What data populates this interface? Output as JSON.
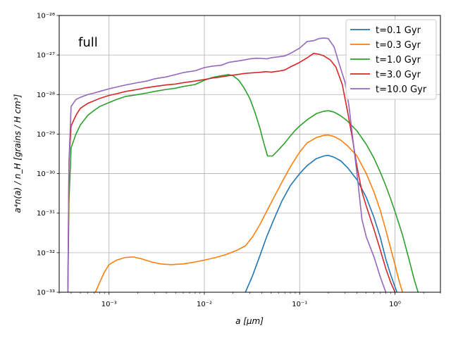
{
  "chart_data": {
    "type": "line",
    "annotation": "full",
    "xlabel": "a  [μm]",
    "ylabel": "a⁴n(a) / n_H  [grains / H cm³]",
    "xscale": "log",
    "yscale": "log",
    "xlim": [
      0.0003,
      3.0
    ],
    "ylim": [
      1e-33,
      1e-26
    ],
    "grid": true,
    "legend_position": "top-right",
    "x_ticks": [
      {
        "value": 0.001,
        "label": "10⁻³"
      },
      {
        "value": 0.01,
        "label": "10⁻²"
      },
      {
        "value": 0.1,
        "label": "10⁻¹"
      },
      {
        "value": 1,
        "label": "10⁰"
      }
    ],
    "y_ticks": [
      {
        "value": 1e-33,
        "label": "10⁻³³"
      },
      {
        "value": 1e-32,
        "label": "10⁻³²"
      },
      {
        "value": 1e-31,
        "label": "10⁻³¹"
      },
      {
        "value": 1e-30,
        "label": "10⁻³⁰"
      },
      {
        "value": 1e-29,
        "label": "10⁻²⁹"
      },
      {
        "value": 1e-28,
        "label": "10⁻²⁸"
      },
      {
        "value": 1e-27,
        "label": "10⁻²⁷"
      },
      {
        "value": 1e-26,
        "label": "10⁻²⁶"
      }
    ],
    "series": [
      {
        "name": "t=0.1 Gyr",
        "color": "#1f77b4",
        "points": [
          [
            0.027,
            1e-33
          ],
          [
            0.032,
            2.6e-33
          ],
          [
            0.038,
            8e-33
          ],
          [
            0.045,
            2.5e-32
          ],
          [
            0.055,
            8e-32
          ],
          [
            0.065,
            2e-31
          ],
          [
            0.08,
            5e-31
          ],
          [
            0.1,
            1e-30
          ],
          [
            0.12,
            1.6e-30
          ],
          [
            0.15,
            2.4e-30
          ],
          [
            0.18,
            2.8e-30
          ],
          [
            0.2,
            2.9e-30
          ],
          [
            0.23,
            2.6e-30
          ],
          [
            0.27,
            2.1e-30
          ],
          [
            0.32,
            1.4e-30
          ],
          [
            0.4,
            7e-31
          ],
          [
            0.5,
            2.5e-31
          ],
          [
            0.6,
            8e-32
          ],
          [
            0.7,
            2.5e-32
          ],
          [
            0.8,
            7e-33
          ],
          [
            0.9,
            2.8e-33
          ],
          [
            1.05,
            1e-33
          ]
        ]
      },
      {
        "name": "t=0.3 Gyr",
        "color": "#ff7f0e",
        "points": [
          [
            0.00072,
            1e-33
          ],
          [
            0.0008,
            1.8e-33
          ],
          [
            0.0009,
            3.3e-33
          ],
          [
            0.001,
            5e-33
          ],
          [
            0.0012,
            6.5e-33
          ],
          [
            0.0015,
            7.6e-33
          ],
          [
            0.0018,
            7.8e-33
          ],
          [
            0.0022,
            7e-33
          ],
          [
            0.0028,
            5.8e-33
          ],
          [
            0.0035,
            5.2e-33
          ],
          [
            0.0045,
            5e-33
          ],
          [
            0.006,
            5.2e-33
          ],
          [
            0.008,
            5.8e-33
          ],
          [
            0.01,
            6.5e-33
          ],
          [
            0.013,
            7.5e-33
          ],
          [
            0.017,
            9e-33
          ],
          [
            0.022,
            1.15e-32
          ],
          [
            0.027,
            1.5e-32
          ],
          [
            0.032,
            2.5e-32
          ],
          [
            0.038,
            5e-32
          ],
          [
            0.045,
            1.1e-31
          ],
          [
            0.055,
            2.8e-31
          ],
          [
            0.065,
            6e-31
          ],
          [
            0.08,
            1.5e-30
          ],
          [
            0.1,
            3.5e-30
          ],
          [
            0.12,
            6e-30
          ],
          [
            0.15,
            8.2e-30
          ],
          [
            0.18,
            9.3e-30
          ],
          [
            0.2,
            9.4e-30
          ],
          [
            0.23,
            8.7e-30
          ],
          [
            0.27,
            7e-30
          ],
          [
            0.32,
            5e-30
          ],
          [
            0.4,
            2.8e-30
          ],
          [
            0.5,
            1e-30
          ],
          [
            0.6,
            3.5e-31
          ],
          [
            0.7,
            1.2e-31
          ],
          [
            0.8,
            3.8e-32
          ],
          [
            0.9,
            1.3e-32
          ],
          [
            1.0,
            5e-33
          ],
          [
            1.1,
            2e-33
          ],
          [
            1.2,
            1e-33
          ]
        ]
      },
      {
        "name": "t=1.0 Gyr",
        "color": "#2ca02c",
        "points": [
          [
            0.00037,
            1e-33
          ],
          [
            0.00038,
            2e-31
          ],
          [
            0.0004,
            4.5e-30
          ],
          [
            0.00045,
            1e-29
          ],
          [
            0.0005,
            1.7e-29
          ],
          [
            0.0006,
            3e-29
          ],
          [
            0.0007,
            4e-29
          ],
          [
            0.0008,
            5e-29
          ],
          [
            0.001,
            6.3e-29
          ],
          [
            0.0012,
            7.5e-29
          ],
          [
            0.0015,
            9e-29
          ],
          [
            0.002,
            1e-28
          ],
          [
            0.0025,
            1.1e-28
          ],
          [
            0.003,
            1.2e-28
          ],
          [
            0.004,
            1.35e-28
          ],
          [
            0.005,
            1.45e-28
          ],
          [
            0.006,
            1.6e-28
          ],
          [
            0.008,
            1.8e-28
          ],
          [
            0.01,
            2.3e-28
          ],
          [
            0.012,
            2.7e-28
          ],
          [
            0.015,
            3e-28
          ],
          [
            0.018,
            3.2e-28
          ],
          [
            0.02,
            3e-28
          ],
          [
            0.023,
            2.3e-28
          ],
          [
            0.026,
            1.5e-28
          ],
          [
            0.03,
            8e-29
          ],
          [
            0.034,
            3.5e-29
          ],
          [
            0.038,
            1.5e-29
          ],
          [
            0.042,
            6e-30
          ],
          [
            0.046,
            2.8e-30
          ],
          [
            0.052,
            2.8e-30
          ],
          [
            0.06,
            4e-30
          ],
          [
            0.07,
            6e-30
          ],
          [
            0.08,
            9e-30
          ],
          [
            0.09,
            1.25e-29
          ],
          [
            0.1,
            1.6e-29
          ],
          [
            0.12,
            2.3e-29
          ],
          [
            0.15,
            3.3e-29
          ],
          [
            0.18,
            3.8e-29
          ],
          [
            0.2,
            3.9e-29
          ],
          [
            0.23,
            3.6e-29
          ],
          [
            0.27,
            2.9e-29
          ],
          [
            0.32,
            2.1e-29
          ],
          [
            0.4,
            1.2e-29
          ],
          [
            0.5,
            5.5e-30
          ],
          [
            0.6,
            2.5e-30
          ],
          [
            0.7,
            1.1e-30
          ],
          [
            0.8,
            5e-31
          ],
          [
            0.9,
            2.3e-31
          ],
          [
            1.0,
            1.1e-31
          ],
          [
            1.2,
            2.8e-32
          ],
          [
            1.4,
            7e-33
          ],
          [
            1.6,
            2e-33
          ],
          [
            1.75,
            1e-33
          ]
        ]
      },
      {
        "name": "t=3.0 Gyr",
        "color": "#d62728",
        "points": [
          [
            0.00037,
            1e-33
          ],
          [
            0.00038,
            2e-30
          ],
          [
            0.0004,
            1.6e-29
          ],
          [
            0.00045,
            3e-29
          ],
          [
            0.0005,
            4.5e-29
          ],
          [
            0.0006,
            6e-29
          ],
          [
            0.0007,
            7e-29
          ],
          [
            0.0008,
            8e-29
          ],
          [
            0.001,
            9.5e-29
          ],
          [
            0.0012,
            1.05e-28
          ],
          [
            0.0015,
            1.2e-28
          ],
          [
            0.002,
            1.35e-28
          ],
          [
            0.0025,
            1.5e-28
          ],
          [
            0.003,
            1.6e-28
          ],
          [
            0.004,
            1.75e-28
          ],
          [
            0.005,
            1.85e-28
          ],
          [
            0.006,
            2e-28
          ],
          [
            0.008,
            2.2e-28
          ],
          [
            0.01,
            2.4e-28
          ],
          [
            0.012,
            2.6e-28
          ],
          [
            0.015,
            2.8e-28
          ],
          [
            0.018,
            3e-28
          ],
          [
            0.022,
            3.2e-28
          ],
          [
            0.026,
            3.4e-28
          ],
          [
            0.03,
            3.5e-28
          ],
          [
            0.035,
            3.6e-28
          ],
          [
            0.04,
            3.7e-28
          ],
          [
            0.045,
            3.8e-28
          ],
          [
            0.05,
            3.7e-28
          ],
          [
            0.06,
            3.9e-28
          ],
          [
            0.07,
            4.2e-28
          ],
          [
            0.08,
            5e-28
          ],
          [
            0.1,
            6.5e-28
          ],
          [
            0.12,
            8.5e-28
          ],
          [
            0.14,
            1.1e-27
          ],
          [
            0.16,
            1.05e-27
          ],
          [
            0.18,
            9.5e-28
          ],
          [
            0.21,
            7.5e-28
          ],
          [
            0.24,
            5e-28
          ],
          [
            0.28,
            1.8e-28
          ],
          [
            0.32,
            3.5e-29
          ],
          [
            0.36,
            7e-30
          ],
          [
            0.4,
            1.5e-30
          ],
          [
            0.45,
            3.5e-31
          ],
          [
            0.5,
            1.5e-31
          ],
          [
            0.6,
            4e-32
          ],
          [
            0.7,
            1.2e-32
          ],
          [
            0.8,
            4e-33
          ],
          [
            0.9,
            1.8e-33
          ],
          [
            1.0,
            1e-33
          ]
        ]
      },
      {
        "name": "t=10.0 Gyr",
        "color": "#9467bd",
        "points": [
          [
            0.00037,
            1e-33
          ],
          [
            0.00038,
            2e-30
          ],
          [
            0.0004,
            5e-29
          ],
          [
            0.00045,
            7.5e-29
          ],
          [
            0.0005,
            8.5e-29
          ],
          [
            0.0006,
            1e-28
          ],
          [
            0.0007,
            1.1e-28
          ],
          [
            0.0008,
            1.2e-28
          ],
          [
            0.001,
            1.4e-28
          ],
          [
            0.0012,
            1.55e-28
          ],
          [
            0.0015,
            1.75e-28
          ],
          [
            0.002,
            2e-28
          ],
          [
            0.0025,
            2.2e-28
          ],
          [
            0.003,
            2.5e-28
          ],
          [
            0.004,
            2.8e-28
          ],
          [
            0.005,
            3.2e-28
          ],
          [
            0.006,
            3.6e-28
          ],
          [
            0.008,
            4e-28
          ],
          [
            0.01,
            4.8e-28
          ],
          [
            0.012,
            5.2e-28
          ],
          [
            0.015,
            5.5e-28
          ],
          [
            0.018,
            6.5e-28
          ],
          [
            0.022,
            7e-28
          ],
          [
            0.026,
            7.5e-28
          ],
          [
            0.03,
            8e-28
          ],
          [
            0.035,
            8.3e-28
          ],
          [
            0.04,
            8.2e-28
          ],
          [
            0.045,
            8e-28
          ],
          [
            0.05,
            8.5e-28
          ],
          [
            0.06,
            9e-28
          ],
          [
            0.07,
            9.5e-28
          ],
          [
            0.08,
            1.1e-27
          ],
          [
            0.1,
            1.5e-27
          ],
          [
            0.12,
            2.2e-27
          ],
          [
            0.14,
            2.3e-27
          ],
          [
            0.16,
            2.6e-27
          ],
          [
            0.18,
            2.7e-27
          ],
          [
            0.2,
            2.6e-27
          ],
          [
            0.23,
            1.6e-27
          ],
          [
            0.26,
            6e-28
          ],
          [
            0.3,
            2e-28
          ],
          [
            0.33,
            5e-29
          ],
          [
            0.36,
            8e-30
          ],
          [
            0.4,
            1e-30
          ],
          [
            0.45,
            7e-32
          ],
          [
            0.5,
            2.5e-32
          ],
          [
            0.6,
            8e-33
          ],
          [
            0.7,
            2.5e-33
          ],
          [
            0.8,
            1e-33
          ]
        ]
      }
    ]
  }
}
